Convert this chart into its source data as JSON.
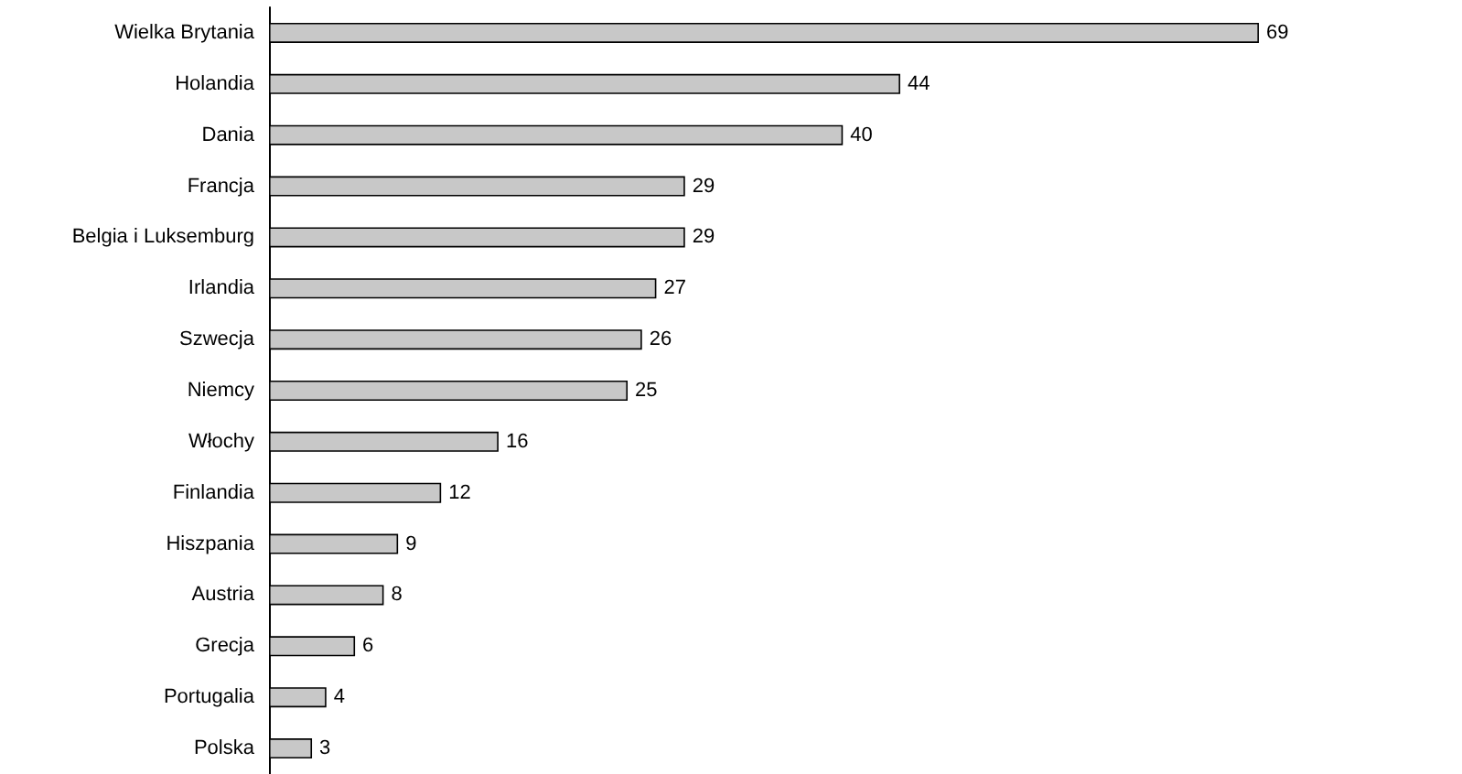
{
  "chart_data": {
    "type": "bar",
    "orientation": "horizontal",
    "categories": [
      "Wielka Brytania",
      "Holandia",
      "Dania",
      "Francja",
      "Belgia i Luksemburg",
      "Irlandia",
      "Szwecja",
      "Niemcy",
      "Włochy",
      "Finlandia",
      "Hiszpania",
      "Austria",
      "Grecja",
      "Portugalia",
      "Polska"
    ],
    "values": [
      69,
      44,
      40,
      29,
      29,
      27,
      26,
      25,
      16,
      12,
      9,
      8,
      6,
      4,
      3
    ],
    "color": "#c8c8c8",
    "data_labels": true
  }
}
